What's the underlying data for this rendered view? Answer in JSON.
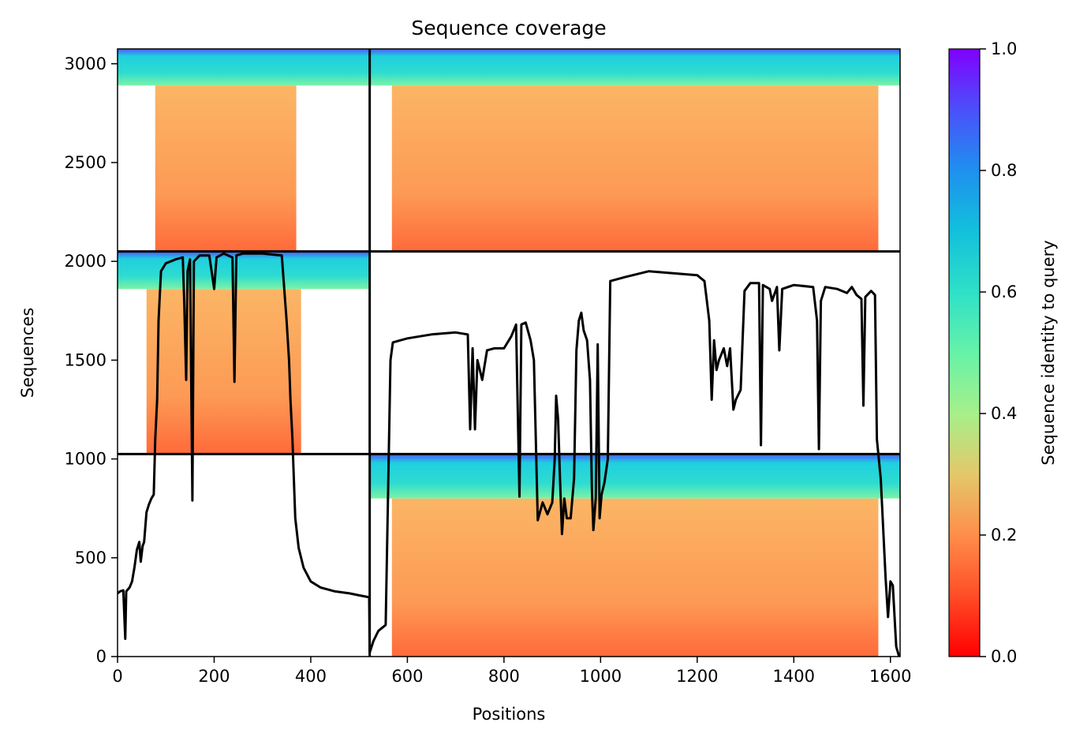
{
  "chart_data": {
    "type": "heatmap",
    "title": "Sequence coverage",
    "xlabel": "Positions",
    "ylabel": "Sequences",
    "xlim": [
      0,
      1620
    ],
    "ylim": [
      0,
      3075
    ],
    "xticks": [
      0,
      200,
      400,
      600,
      800,
      1000,
      1200,
      1400,
      1600
    ],
    "yticks": [
      0,
      500,
      1000,
      1500,
      2000,
      2500,
      3000
    ],
    "grid": false,
    "colorbar": {
      "label": "Sequence identity to query",
      "range": [
        0.0,
        1.0
      ],
      "ticks": [
        0.0,
        0.2,
        0.4,
        0.6,
        0.8,
        1.0
      ],
      "tick_labels": [
        "0.0",
        "0.2",
        "0.4",
        "0.6",
        "0.8",
        "1.0"
      ],
      "colormap": "rainbow_r"
    },
    "domain_boundaries": {
      "position": 522,
      "sequences": [
        1025,
        2050
      ]
    },
    "coverage_blocks": [
      {
        "x": [
          0,
          522
        ],
        "y": [
          2050,
          3075
        ],
        "high_identity_rows": [
          2890,
          3075
        ],
        "main_span": [
          78,
          370
        ]
      },
      {
        "x": [
          522,
          1620
        ],
        "y": [
          2050,
          3075
        ],
        "high_identity_rows": [
          2890,
          3075
        ],
        "main_span": [
          568,
          1575
        ]
      },
      {
        "x": [
          0,
          522
        ],
        "y": [
          1025,
          2050
        ],
        "high_identity_rows": [
          1860,
          2050
        ],
        "main_span": [
          60,
          380
        ]
      },
      {
        "x": [
          522,
          1620
        ],
        "y": [
          0,
          1025
        ],
        "high_identity_rows": [
          800,
          1025
        ],
        "main_span": [
          568,
          1575
        ]
      }
    ],
    "series": [
      {
        "name": "coverage",
        "color": "#000000",
        "points": [
          [
            0,
            320
          ],
          [
            5,
            330
          ],
          [
            12,
            335
          ],
          [
            16,
            90
          ],
          [
            18,
            330
          ],
          [
            25,
            350
          ],
          [
            30,
            380
          ],
          [
            35,
            450
          ],
          [
            40,
            540
          ],
          [
            45,
            580
          ],
          [
            48,
            480
          ],
          [
            52,
            560
          ],
          [
            55,
            580
          ],
          [
            60,
            730
          ],
          [
            65,
            770
          ],
          [
            70,
            800
          ],
          [
            75,
            820
          ],
          [
            78,
            1100
          ],
          [
            82,
            1300
          ],
          [
            85,
            1700
          ],
          [
            90,
            1950
          ],
          [
            100,
            1990
          ],
          [
            110,
            2000
          ],
          [
            120,
            2010
          ],
          [
            135,
            2020
          ],
          [
            138,
            1800
          ],
          [
            142,
            1400
          ],
          [
            145,
            1950
          ],
          [
            150,
            2010
          ],
          [
            155,
            790
          ],
          [
            158,
            2000
          ],
          [
            170,
            2030
          ],
          [
            190,
            2030
          ],
          [
            200,
            1860
          ],
          [
            205,
            2020
          ],
          [
            220,
            2040
          ],
          [
            238,
            2020
          ],
          [
            242,
            1390
          ],
          [
            246,
            2030
          ],
          [
            260,
            2040
          ],
          [
            300,
            2040
          ],
          [
            340,
            2030
          ],
          [
            350,
            1700
          ],
          [
            355,
            1500
          ],
          [
            358,
            1300
          ],
          [
            362,
            1100
          ],
          [
            368,
            700
          ],
          [
            375,
            550
          ],
          [
            385,
            450
          ],
          [
            400,
            380
          ],
          [
            420,
            350
          ],
          [
            450,
            330
          ],
          [
            480,
            320
          ],
          [
            500,
            310
          ],
          [
            521,
            300
          ],
          [
            522,
            20
          ],
          [
            530,
            80
          ],
          [
            540,
            130
          ],
          [
            555,
            160
          ],
          [
            565,
            1500
          ],
          [
            570,
            1590
          ],
          [
            600,
            1610
          ],
          [
            650,
            1630
          ],
          [
            700,
            1640
          ],
          [
            725,
            1630
          ],
          [
            730,
            1150
          ],
          [
            735,
            1560
          ],
          [
            740,
            1150
          ],
          [
            745,
            1500
          ],
          [
            755,
            1400
          ],
          [
            765,
            1550
          ],
          [
            780,
            1560
          ],
          [
            800,
            1560
          ],
          [
            815,
            1620
          ],
          [
            825,
            1680
          ],
          [
            832,
            810
          ],
          [
            836,
            1680
          ],
          [
            845,
            1690
          ],
          [
            855,
            1600
          ],
          [
            862,
            1500
          ],
          [
            870,
            690
          ],
          [
            880,
            780
          ],
          [
            890,
            720
          ],
          [
            900,
            780
          ],
          [
            905,
            1000
          ],
          [
            908,
            1320
          ],
          [
            912,
            1200
          ],
          [
            916,
            900
          ],
          [
            920,
            620
          ],
          [
            925,
            800
          ],
          [
            930,
            700
          ],
          [
            938,
            700
          ],
          [
            945,
            900
          ],
          [
            950,
            1550
          ],
          [
            955,
            1700
          ],
          [
            960,
            1740
          ],
          [
            965,
            1650
          ],
          [
            972,
            1600
          ],
          [
            978,
            1400
          ],
          [
            982,
            850
          ],
          [
            985,
            640
          ],
          [
            990,
            800
          ],
          [
            994,
            1580
          ],
          [
            998,
            700
          ],
          [
            1002,
            820
          ],
          [
            1008,
            880
          ],
          [
            1015,
            1000
          ],
          [
            1020,
            1900
          ],
          [
            1050,
            1920
          ],
          [
            1100,
            1950
          ],
          [
            1150,
            1940
          ],
          [
            1200,
            1930
          ],
          [
            1215,
            1900
          ],
          [
            1225,
            1700
          ],
          [
            1230,
            1300
          ],
          [
            1235,
            1600
          ],
          [
            1240,
            1450
          ],
          [
            1245,
            1500
          ],
          [
            1255,
            1560
          ],
          [
            1262,
            1470
          ],
          [
            1268,
            1560
          ],
          [
            1275,
            1250
          ],
          [
            1280,
            1300
          ],
          [
            1290,
            1350
          ],
          [
            1298,
            1850
          ],
          [
            1310,
            1890
          ],
          [
            1328,
            1890
          ],
          [
            1332,
            1070
          ],
          [
            1336,
            1880
          ],
          [
            1350,
            1860
          ],
          [
            1355,
            1800
          ],
          [
            1365,
            1870
          ],
          [
            1370,
            1550
          ],
          [
            1376,
            1860
          ],
          [
            1400,
            1880
          ],
          [
            1440,
            1870
          ],
          [
            1448,
            1700
          ],
          [
            1452,
            1050
          ],
          [
            1456,
            1800
          ],
          [
            1465,
            1870
          ],
          [
            1490,
            1860
          ],
          [
            1510,
            1840
          ],
          [
            1520,
            1870
          ],
          [
            1530,
            1830
          ],
          [
            1540,
            1810
          ],
          [
            1544,
            1270
          ],
          [
            1548,
            1820
          ],
          [
            1560,
            1850
          ],
          [
            1568,
            1830
          ],
          [
            1572,
            1100
          ],
          [
            1580,
            900
          ],
          [
            1590,
            400
          ],
          [
            1595,
            200
          ],
          [
            1600,
            380
          ],
          [
            1605,
            360
          ],
          [
            1612,
            50
          ],
          [
            1618,
            0
          ]
        ]
      }
    ]
  }
}
